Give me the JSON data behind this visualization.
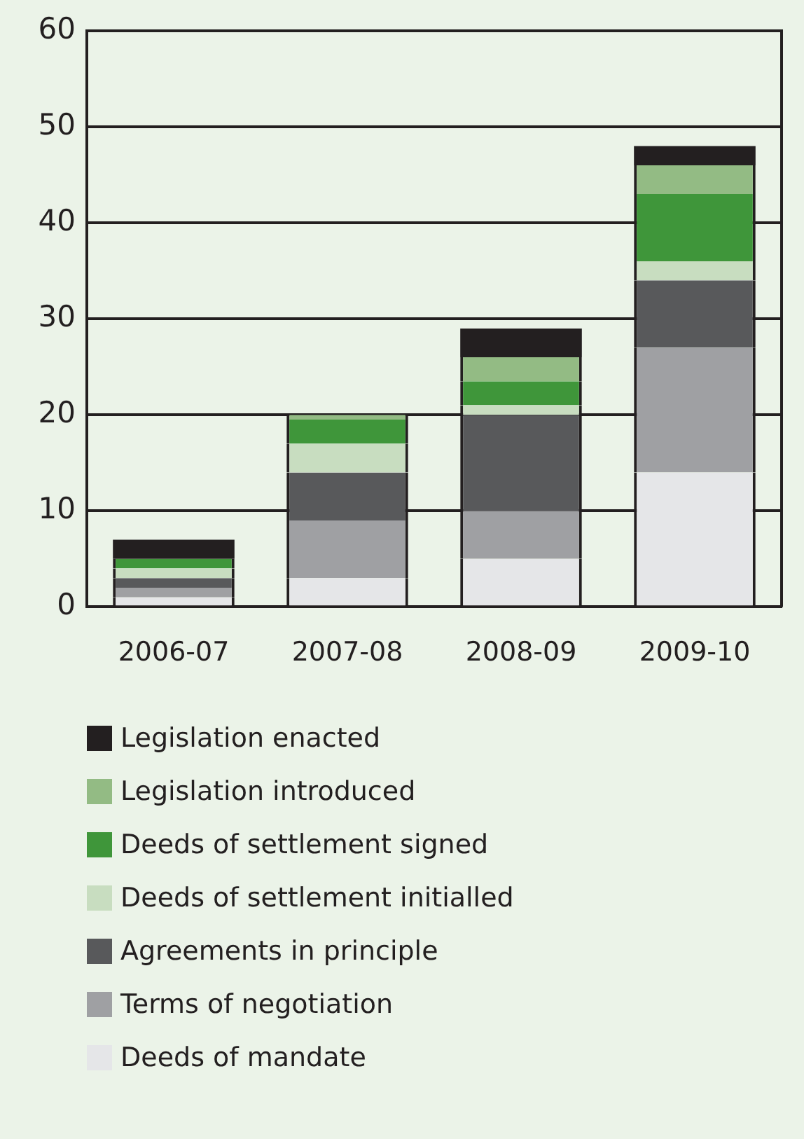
{
  "chart_data": {
    "type": "bar",
    "stacked": true,
    "categories": [
      "2006-07",
      "2007-08",
      "2008-09",
      "2009-10"
    ],
    "series": [
      {
        "name": "Deeds of mandate",
        "color": "#e5e6e8",
        "values": [
          1,
          3,
          5,
          14
        ]
      },
      {
        "name": "Terms of negotiation",
        "color": "#9fa0a3",
        "values": [
          1,
          6,
          5,
          13
        ]
      },
      {
        "name": "Agreements in principle",
        "color": "#58595b",
        "values": [
          1,
          5,
          10,
          7
        ]
      },
      {
        "name": "Deeds of settlement initialled",
        "color": "#c8ddc0",
        "values": [
          1,
          3,
          1,
          2
        ]
      },
      {
        "name": "Deeds of settlement signed",
        "color": "#3f963a",
        "values": [
          1,
          2.5,
          2.5,
          7
        ]
      },
      {
        "name": "Legislation introduced",
        "color": "#93bb84",
        "values": [
          0,
          0.5,
          2.5,
          3
        ]
      },
      {
        "name": "Legislation enacted",
        "color": "#231f20",
        "values": [
          2,
          0,
          3,
          2
        ]
      }
    ],
    "ylim": [
      0,
      60
    ],
    "yticks": [
      0,
      10,
      20,
      30,
      40,
      50,
      60
    ],
    "grid": "y",
    "legend": "bottom"
  }
}
